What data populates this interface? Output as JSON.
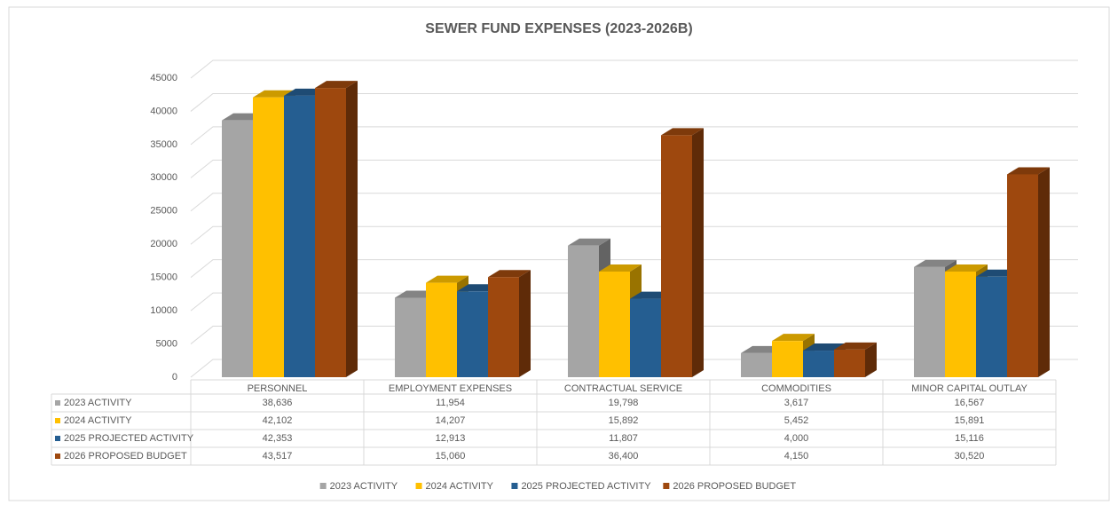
{
  "chart_data": {
    "type": "bar",
    "title": "SEWER FUND EXPENSES (2023-2026B)",
    "categories": [
      "PERSONNEL",
      "EMPLOYMENT EXPENSES",
      "CONTRACTUAL SERVICE",
      "COMMODITIES",
      "MINOR CAPITAL OUTLAY"
    ],
    "series": [
      {
        "name": "2023 ACTIVITY",
        "color": "#a5a5a5",
        "values": [
          38636,
          11954,
          19798,
          3617,
          16567
        ],
        "value_labels": [
          "38,636",
          "11,954",
          "19,798",
          "3,617",
          "16,567"
        ]
      },
      {
        "name": "2024 ACTIVITY",
        "color": "#ffc000",
        "values": [
          42102,
          14207,
          15892,
          5452,
          15891
        ],
        "value_labels": [
          "42,102",
          "14,207",
          "15,892",
          "5,452",
          "15,891"
        ]
      },
      {
        "name": "2025 PROJECTED ACTIVITY",
        "color": "#255e91",
        "values": [
          42353,
          12913,
          11807,
          4000,
          15116
        ],
        "value_labels": [
          "42,353",
          "12,913",
          "11,807",
          "4,000",
          "15,116"
        ]
      },
      {
        "name": "2026 PROPOSED BUDGET",
        "color": "#9e480e",
        "values": [
          43517,
          15060,
          36400,
          4150,
          30520
        ],
        "value_labels": [
          "43,517",
          "15,060",
          "36,400",
          "4,150",
          "30,520"
        ]
      }
    ],
    "ylim": [
      0,
      45000
    ],
    "yticks": [
      0,
      5000,
      10000,
      15000,
      20000,
      25000,
      30000,
      35000,
      40000,
      45000
    ],
    "grid": true,
    "legend": "bottom"
  }
}
